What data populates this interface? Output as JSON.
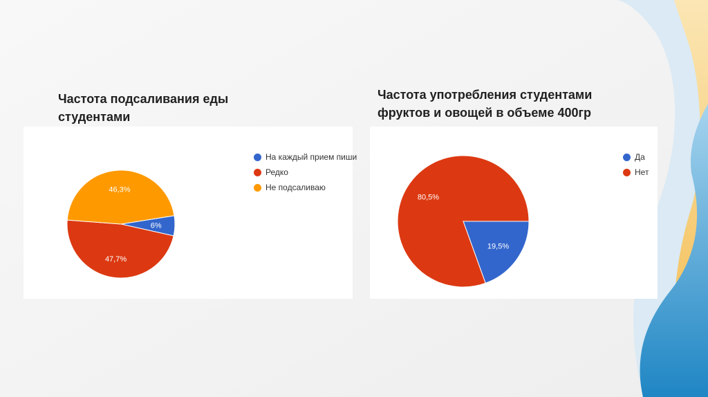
{
  "charts": [
    {
      "title": "Частота подсаливания еды студентами",
      "legend": [
        {
          "label": "На каждый прием пиши",
          "color": "#3366cc"
        },
        {
          "label": "Редко",
          "color": "#dc3912"
        },
        {
          "label": "Не подсаливаю",
          "color": "#ff9900"
        }
      ]
    },
    {
      "title": "Частота употребления студентами фруктов и овощей в объеме 400гр",
      "legend": [
        {
          "label": "Да",
          "color": "#3366cc"
        },
        {
          "label": "Нет",
          "color": "#dc3912"
        }
      ]
    }
  ],
  "chart_data": [
    {
      "type": "pie",
      "title": "Частота подсаливания еды студентами",
      "categories": [
        "На каждый прием пиши",
        "Редко",
        "Не подсаливаю"
      ],
      "values": [
        6,
        47.7,
        46.3
      ],
      "labels": [
        "6%",
        "47,7%",
        "46,3%"
      ],
      "colors": [
        "#3366cc",
        "#dc3912",
        "#ff9900"
      ],
      "legend": "right"
    },
    {
      "type": "pie",
      "title": "Частота употребления студентами фруктов и овощей в объеме 400гр",
      "categories": [
        "Да",
        "Нет"
      ],
      "values": [
        19.5,
        80.5
      ],
      "labels": [
        "19,5%",
        "80,5%"
      ],
      "colors": [
        "#3366cc",
        "#dc3912"
      ],
      "legend": "right"
    }
  ]
}
